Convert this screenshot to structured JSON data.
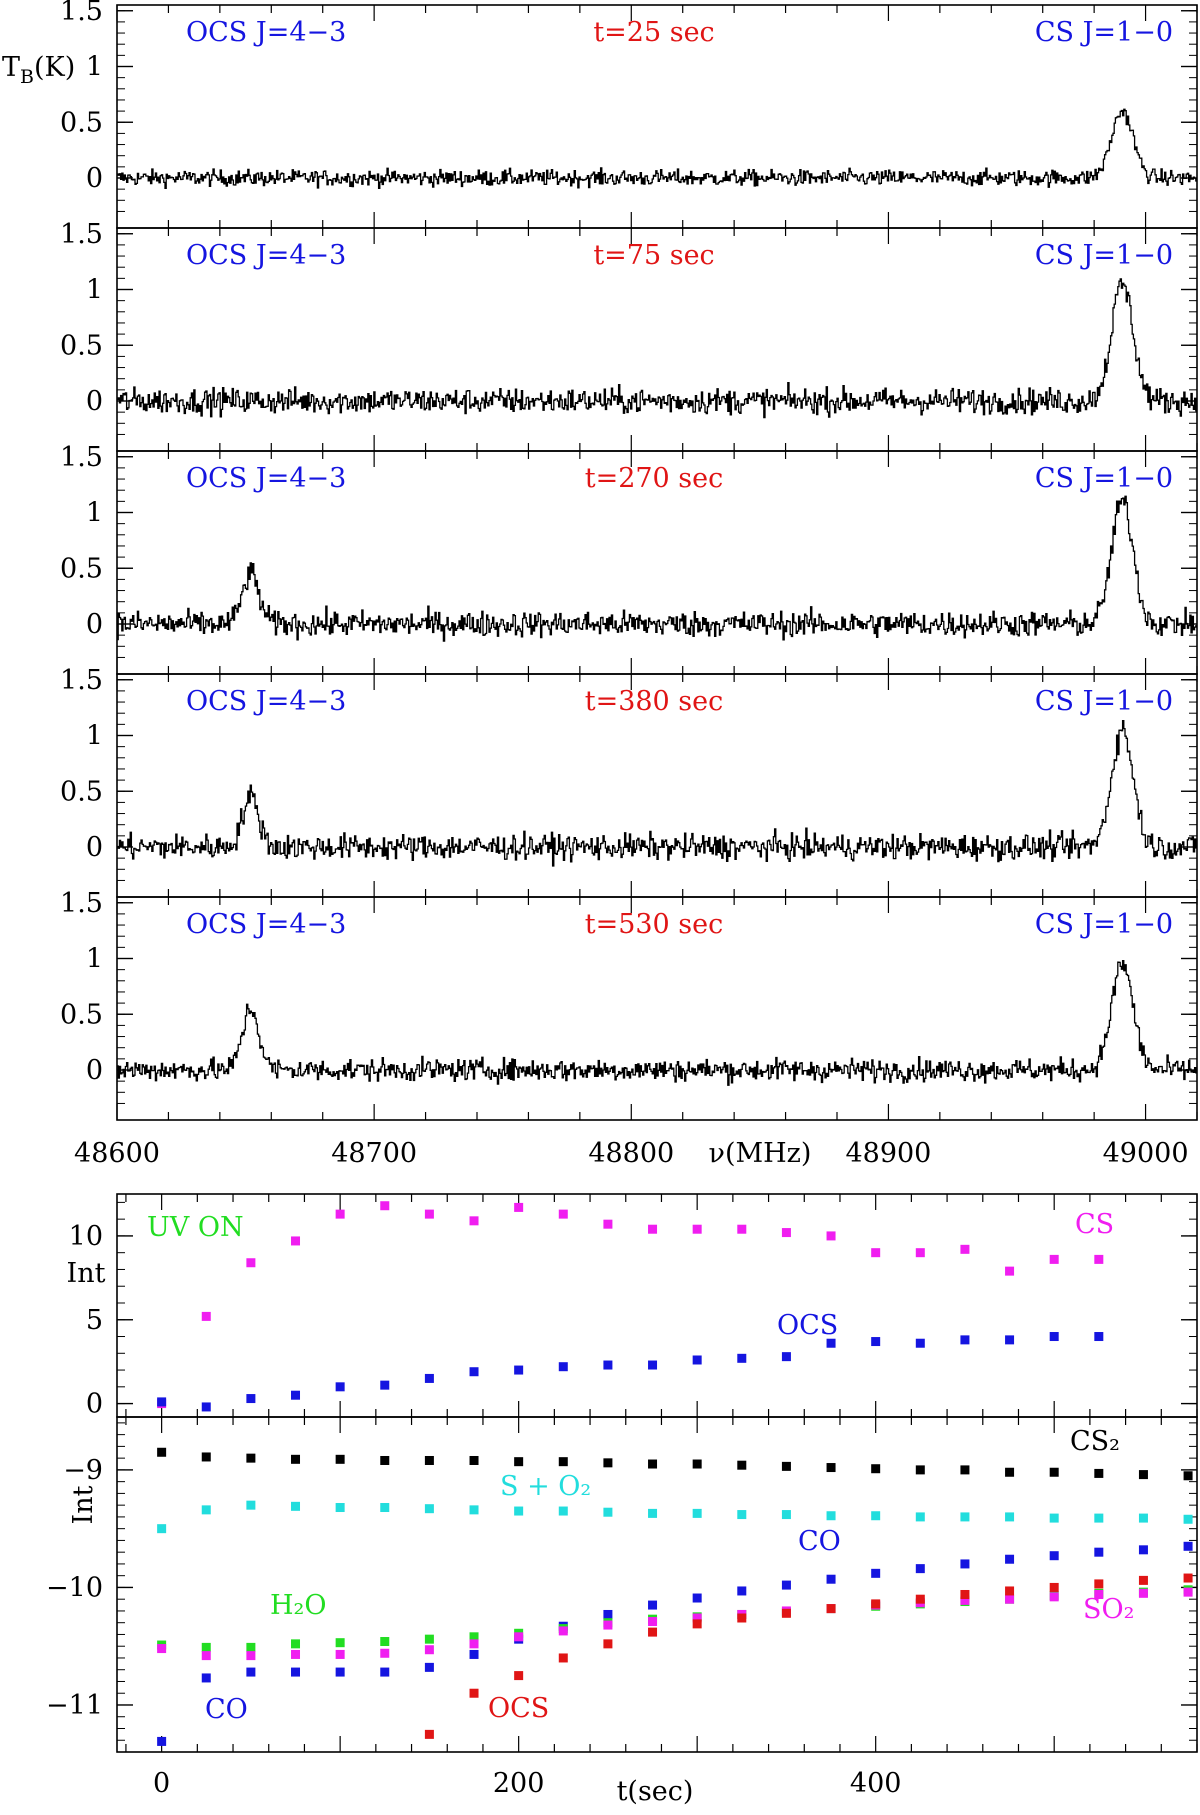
{
  "colors": {
    "blue": "#1515e0",
    "red": "#e01515",
    "magenta": "#f01ef0",
    "green": "#22dd22",
    "cyan": "#22dddd",
    "black": "#000000"
  },
  "spectra": {
    "ylabel": "T_B(K)",
    "xlabel": "ν(MHz)",
    "x_ticks": [
      "48600",
      "48700",
      "48800",
      "48900",
      "49000"
    ],
    "y_ticks": [
      "1.5",
      "1",
      "0.5",
      "0"
    ],
    "label_left": "OCS J=4−3",
    "label_right": "CS J=1−0",
    "panels": [
      {
        "time_label": "t=25 sec"
      },
      {
        "time_label": "t=75 sec"
      },
      {
        "time_label": "t=270 sec"
      },
      {
        "time_label": "t=380 sec"
      },
      {
        "time_label": "t=530 sec"
      }
    ]
  },
  "upper_int": {
    "ylabel": "Int",
    "y_ticks": [
      "10",
      "5",
      "0"
    ],
    "annotations": {
      "uv_on": "UV ON",
      "cs": "CS",
      "ocs": "OCS"
    }
  },
  "lower_int": {
    "ylabel": "Int",
    "y_ticks": [
      "−9",
      "−10",
      "−11"
    ],
    "x_ticks": [
      "0",
      "200",
      "400"
    ],
    "xlabel": "t(sec)",
    "annotations": {
      "cs2": "CS₂",
      "s_o2": "S + O₂",
      "co_right": "CO",
      "h2o": "H₂O",
      "so2": "SO₂",
      "co_left": "CO",
      "ocs": "OCS"
    }
  },
  "chart_data": [
    {
      "type": "line",
      "xlabel": "ν(MHz)",
      "ylabel": "T_B(K)",
      "xlim": [
        48600,
        49020
      ],
      "ylim": [
        -0.35,
        1.55
      ],
      "panels": [
        {
          "time_label": "t=25 sec",
          "lines": [
            {
              "name": "OCS J=4−3",
              "center_mhz": 48652,
              "peak_k": 0.0
            },
            {
              "name": "CS J=1−0",
              "center_mhz": 48991,
              "peak_k": 0.6
            }
          ],
          "noise_rms_k": 0.05
        },
        {
          "time_label": "t=75 sec",
          "lines": [
            {
              "name": "OCS J=4−3",
              "center_mhz": 48652,
              "peak_k": 0.0
            },
            {
              "name": "CS J=1−0",
              "center_mhz": 48991,
              "peak_k": 1.05
            }
          ],
          "noise_rms_k": 0.08
        },
        {
          "time_label": "t=270 sec",
          "lines": [
            {
              "name": "OCS J=4−3",
              "center_mhz": 48652,
              "peak_k": 0.45
            },
            {
              "name": "CS J=1−0",
              "center_mhz": 48991,
              "peak_k": 1.1
            }
          ],
          "noise_rms_k": 0.08
        },
        {
          "time_label": "t=380 sec",
          "lines": [
            {
              "name": "OCS J=4−3",
              "center_mhz": 48652,
              "peak_k": 0.45
            },
            {
              "name": "CS J=1−0",
              "center_mhz": 48991,
              "peak_k": 1.05
            }
          ],
          "noise_rms_k": 0.08
        },
        {
          "time_label": "t=530 sec",
          "lines": [
            {
              "name": "OCS J=4−3",
              "center_mhz": 48652,
              "peak_k": 0.55
            },
            {
              "name": "CS J=1−0",
              "center_mhz": 48991,
              "peak_k": 0.95
            }
          ],
          "noise_rms_k": 0.07
        }
      ]
    },
    {
      "type": "scatter",
      "ylabel": "Int",
      "xlim": [
        -25,
        580
      ],
      "ylim": [
        -0.8,
        12.5
      ],
      "series": [
        {
          "name": "CS",
          "color": "magenta",
          "x": [
            0,
            25,
            50,
            75,
            100,
            125,
            150,
            175,
            200,
            225,
            250,
            275,
            300,
            325,
            350,
            375,
            400,
            425,
            450,
            475,
            500,
            525
          ],
          "y": [
            0,
            5.2,
            8.4,
            9.7,
            11.3,
            11.8,
            11.3,
            10.9,
            11.7,
            11.3,
            10.7,
            10.4,
            10.4,
            10.4,
            10.2,
            10.0,
            9.0,
            9.0,
            9.2,
            7.9,
            8.6,
            8.6
          ]
        },
        {
          "name": "OCS",
          "color": "blue",
          "x": [
            0,
            25,
            50,
            75,
            100,
            125,
            150,
            175,
            200,
            225,
            250,
            275,
            300,
            325,
            350,
            375,
            400,
            425,
            450,
            475,
            500,
            525
          ],
          "y": [
            0.1,
            -0.2,
            0.3,
            0.5,
            1.0,
            1.1,
            1.5,
            1.9,
            2.0,
            2.2,
            2.3,
            2.3,
            2.6,
            2.7,
            2.8,
            3.6,
            3.7,
            3.6,
            3.8,
            3.8,
            4.0,
            4.0
          ]
        }
      ]
    },
    {
      "type": "scatter",
      "xlabel": "t(sec)",
      "ylabel": "Int",
      "xlim": [
        -25,
        580
      ],
      "ylim": [
        -11.4,
        -8.55
      ],
      "series": [
        {
          "name": "CS₂",
          "color": "black",
          "x": [
            0,
            25,
            50,
            75,
            100,
            125,
            150,
            175,
            200,
            225,
            250,
            275,
            300,
            325,
            350,
            375,
            400,
            425,
            450,
            475,
            500,
            525,
            550,
            575
          ],
          "y": [
            -8.85,
            -8.89,
            -8.9,
            -8.91,
            -8.91,
            -8.92,
            -8.92,
            -8.92,
            -8.93,
            -8.93,
            -8.94,
            -8.95,
            -8.95,
            -8.96,
            -8.97,
            -8.98,
            -8.99,
            -9.0,
            -9.0,
            -9.02,
            -9.02,
            -9.03,
            -9.04,
            -9.05
          ]
        },
        {
          "name": "S + O₂",
          "color": "cyan",
          "x": [
            0,
            25,
            50,
            75,
            100,
            125,
            150,
            175,
            200,
            225,
            250,
            275,
            300,
            325,
            350,
            375,
            400,
            425,
            450,
            475,
            500,
            525,
            550,
            575
          ],
          "y": [
            -9.5,
            -9.34,
            -9.3,
            -9.31,
            -9.32,
            -9.32,
            -9.33,
            -9.34,
            -9.35,
            -9.35,
            -9.36,
            -9.37,
            -9.37,
            -9.38,
            -9.38,
            -9.39,
            -9.39,
            -9.4,
            -9.4,
            -9.4,
            -9.41,
            -9.41,
            -9.41,
            -9.42
          ]
        },
        {
          "name": "CO",
          "color": "blue",
          "x": [
            0,
            25,
            50,
            75,
            100,
            125,
            150,
            175,
            200,
            225,
            250,
            275,
            300,
            325,
            350,
            375,
            400,
            425,
            450,
            475,
            500,
            525,
            550,
            575
          ],
          "y": [
            -11.31,
            -10.77,
            -10.72,
            -10.72,
            -10.72,
            -10.72,
            -10.68,
            -10.57,
            -10.44,
            -10.33,
            -10.23,
            -10.15,
            -10.09,
            -10.03,
            -9.98,
            -9.93,
            -9.88,
            -9.84,
            -9.8,
            -9.76,
            -9.73,
            -9.7,
            -9.68,
            -9.65
          ]
        },
        {
          "name": "H₂O",
          "color": "green",
          "x": [
            0,
            25,
            50,
            75,
            100,
            125,
            150,
            175,
            200,
            225,
            250,
            275,
            300,
            325,
            350,
            375,
            400,
            425,
            450,
            475,
            500,
            525,
            550,
            575
          ],
          "y": [
            -10.49,
            -10.51,
            -10.51,
            -10.48,
            -10.47,
            -10.46,
            -10.44,
            -10.42,
            -10.39,
            -10.35,
            -10.3,
            -10.27,
            -10.25,
            -10.23,
            -10.21,
            -10.18,
            -10.16,
            -10.14,
            -10.12,
            -10.1,
            -10.07,
            -10.05,
            -10.04,
            -10.02
          ]
        },
        {
          "name": "SO₂",
          "color": "magenta",
          "x": [
            0,
            25,
            50,
            75,
            100,
            125,
            150,
            175,
            200,
            225,
            250,
            275,
            300,
            325,
            350,
            375,
            400,
            425,
            450,
            475,
            500,
            525,
            550,
            575
          ],
          "y": [
            -10.52,
            -10.58,
            -10.58,
            -10.57,
            -10.57,
            -10.56,
            -10.53,
            -10.48,
            -10.42,
            -10.37,
            -10.32,
            -10.29,
            -10.26,
            -10.23,
            -10.2,
            -10.18,
            -10.15,
            -10.13,
            -10.11,
            -10.1,
            -10.08,
            -10.06,
            -10.05,
            -10.04
          ]
        },
        {
          "name": "OCS",
          "color": "red",
          "x": [
            150,
            175,
            200,
            225,
            250,
            275,
            300,
            325,
            350,
            375,
            400,
            425,
            450,
            475,
            500,
            525,
            550,
            575
          ],
          "y": [
            -11.25,
            -10.9,
            -10.75,
            -10.6,
            -10.48,
            -10.38,
            -10.31,
            -10.26,
            -10.22,
            -10.18,
            -10.14,
            -10.1,
            -10.06,
            -10.03,
            -10.0,
            -9.97,
            -9.94,
            -9.92
          ]
        }
      ]
    }
  ]
}
